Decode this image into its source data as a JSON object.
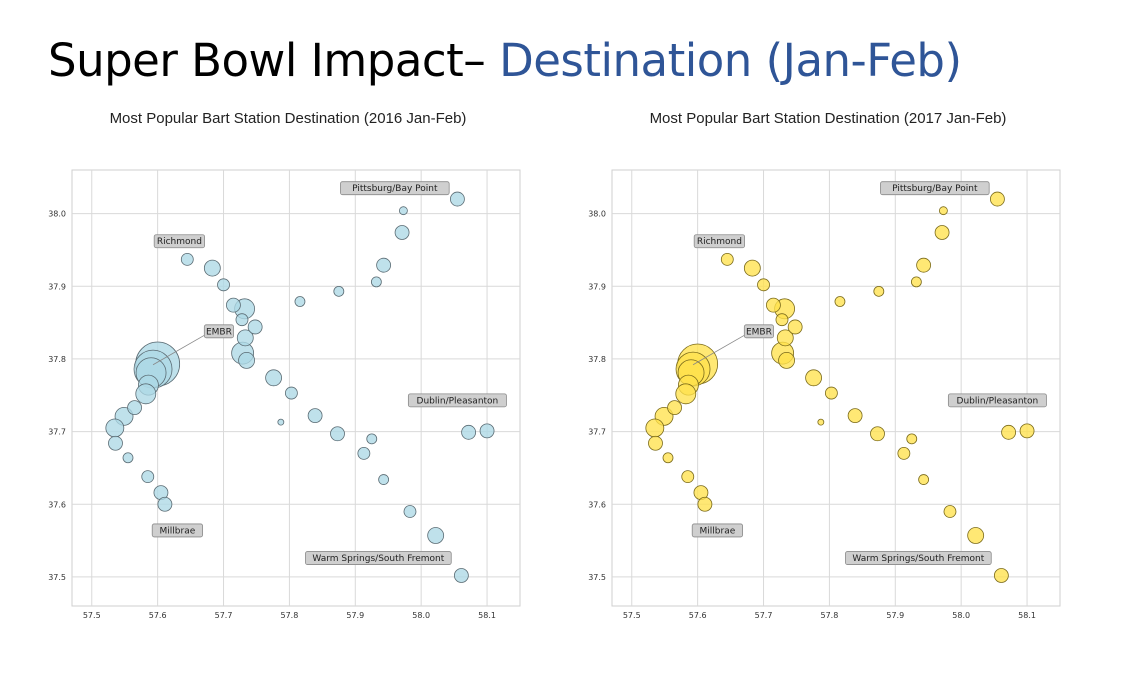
{
  "slide": {
    "title_main": "Super Bowl Impact– ",
    "title_accent": "Destination (Jan-Feb)",
    "accent_color": "#2f5597"
  },
  "chart_data": [
    {
      "type": "scatter",
      "title": "Most Popular Bart Station Destination (2016 Jan-Feb)",
      "xlabel": "",
      "ylabel": "",
      "xlim": [
        57.47,
        58.15
      ],
      "ylim": [
        37.46,
        38.06
      ],
      "xticks": [
        57.5,
        57.6,
        57.7,
        57.8,
        57.9,
        58.0,
        58.1
      ],
      "yticks": [
        37.5,
        37.6,
        37.7,
        37.8,
        37.9,
        38.0
      ],
      "grid": true,
      "marker_color": "#add8e6",
      "marker_edge": "#5a6b73",
      "points": [
        {
          "x": 58.055,
          "y": 38.02,
          "s": 7
        },
        {
          "x": 57.973,
          "y": 38.004,
          "s": 4
        },
        {
          "x": 57.971,
          "y": 37.974,
          "s": 7
        },
        {
          "x": 57.943,
          "y": 37.929,
          "s": 7
        },
        {
          "x": 57.932,
          "y": 37.906,
          "s": 5
        },
        {
          "x": 57.875,
          "y": 37.893,
          "s": 5
        },
        {
          "x": 57.816,
          "y": 37.879,
          "s": 5
        },
        {
          "x": 57.645,
          "y": 37.937,
          "s": 6
        },
        {
          "x": 57.683,
          "y": 37.925,
          "s": 8
        },
        {
          "x": 57.7,
          "y": 37.902,
          "s": 6
        },
        {
          "x": 57.715,
          "y": 37.874,
          "s": 7
        },
        {
          "x": 57.732,
          "y": 37.869,
          "s": 10
        },
        {
          "x": 57.728,
          "y": 37.854,
          "s": 6
        },
        {
          "x": 57.748,
          "y": 37.844,
          "s": 7
        },
        {
          "x": 57.733,
          "y": 37.829,
          "s": 8
        },
        {
          "x": 57.729,
          "y": 37.808,
          "s": 11
        },
        {
          "x": 57.735,
          "y": 37.798,
          "s": 8
        },
        {
          "x": 57.6,
          "y": 37.793,
          "s": 22
        },
        {
          "x": 57.593,
          "y": 37.786,
          "s": 19
        },
        {
          "x": 57.59,
          "y": 37.781,
          "s": 15
        },
        {
          "x": 57.586,
          "y": 37.764,
          "s": 10
        },
        {
          "x": 57.582,
          "y": 37.752,
          "s": 10
        },
        {
          "x": 57.776,
          "y": 37.774,
          "s": 8
        },
        {
          "x": 57.803,
          "y": 37.753,
          "s": 6
        },
        {
          "x": 57.565,
          "y": 37.733,
          "s": 7
        },
        {
          "x": 57.549,
          "y": 37.721,
          "s": 9
        },
        {
          "x": 57.535,
          "y": 37.705,
          "s": 9
        },
        {
          "x": 57.536,
          "y": 37.684,
          "s": 7
        },
        {
          "x": 57.555,
          "y": 37.664,
          "s": 5
        },
        {
          "x": 57.839,
          "y": 37.722,
          "s": 7
        },
        {
          "x": 57.787,
          "y": 37.713,
          "s": 3
        },
        {
          "x": 57.873,
          "y": 37.697,
          "s": 7
        },
        {
          "x": 57.925,
          "y": 37.69,
          "s": 5
        },
        {
          "x": 57.913,
          "y": 37.67,
          "s": 6
        },
        {
          "x": 57.943,
          "y": 37.634,
          "s": 5
        },
        {
          "x": 57.585,
          "y": 37.638,
          "s": 6
        },
        {
          "x": 57.605,
          "y": 37.616,
          "s": 7
        },
        {
          "x": 57.611,
          "y": 37.6,
          "s": 7
        },
        {
          "x": 57.983,
          "y": 37.59,
          "s": 6
        },
        {
          "x": 58.022,
          "y": 37.557,
          "s": 8
        },
        {
          "x": 58.061,
          "y": 37.502,
          "s": 7
        },
        {
          "x": 58.072,
          "y": 37.699,
          "s": 7
        },
        {
          "x": 58.1,
          "y": 37.701,
          "s": 7
        }
      ],
      "annotations": [
        {
          "label": "Pittsburg/Bay Point",
          "x": 57.96,
          "y": 38.035
        },
        {
          "label": "Richmond",
          "x": 57.633,
          "y": 37.962
        },
        {
          "label": "EMBR",
          "x": 57.693,
          "y": 37.838,
          "arrow_to": {
            "x": 57.593,
            "y": 37.792
          }
        },
        {
          "label": "Dublin/Pleasanton",
          "x": 58.055,
          "y": 37.743
        },
        {
          "label": "Millbrae",
          "x": 57.63,
          "y": 37.564
        },
        {
          "label": "Warm Springs/South Fremont",
          "x": 57.935,
          "y": 37.526
        }
      ]
    },
    {
      "type": "scatter",
      "title": "Most Popular Bart Station Destination (2017 Jan-Feb)",
      "xlabel": "",
      "ylabel": "",
      "xlim": [
        57.47,
        58.15
      ],
      "ylim": [
        37.46,
        38.06
      ],
      "xticks": [
        57.5,
        57.6,
        57.7,
        57.8,
        57.9,
        58.0,
        58.1
      ],
      "yticks": [
        37.5,
        37.6,
        37.7,
        37.8,
        37.9,
        38.0
      ],
      "grid": true,
      "marker_color": "#ffe24d",
      "marker_edge": "#7a6a1a",
      "points": [
        {
          "x": 58.055,
          "y": 38.02,
          "s": 7
        },
        {
          "x": 57.973,
          "y": 38.004,
          "s": 4
        },
        {
          "x": 57.971,
          "y": 37.974,
          "s": 7
        },
        {
          "x": 57.943,
          "y": 37.929,
          "s": 7
        },
        {
          "x": 57.932,
          "y": 37.906,
          "s": 5
        },
        {
          "x": 57.875,
          "y": 37.893,
          "s": 5
        },
        {
          "x": 57.816,
          "y": 37.879,
          "s": 5
        },
        {
          "x": 57.645,
          "y": 37.937,
          "s": 6
        },
        {
          "x": 57.683,
          "y": 37.925,
          "s": 8
        },
        {
          "x": 57.7,
          "y": 37.902,
          "s": 6
        },
        {
          "x": 57.715,
          "y": 37.874,
          "s": 7
        },
        {
          "x": 57.732,
          "y": 37.869,
          "s": 10
        },
        {
          "x": 57.728,
          "y": 37.854,
          "s": 6
        },
        {
          "x": 57.748,
          "y": 37.844,
          "s": 7
        },
        {
          "x": 57.733,
          "y": 37.829,
          "s": 8
        },
        {
          "x": 57.729,
          "y": 37.808,
          "s": 11
        },
        {
          "x": 57.735,
          "y": 37.798,
          "s": 8
        },
        {
          "x": 57.6,
          "y": 37.793,
          "s": 20
        },
        {
          "x": 57.593,
          "y": 37.786,
          "s": 17
        },
        {
          "x": 57.59,
          "y": 37.781,
          "s": 13
        },
        {
          "x": 57.586,
          "y": 37.764,
          "s": 10
        },
        {
          "x": 57.582,
          "y": 37.752,
          "s": 10
        },
        {
          "x": 57.776,
          "y": 37.774,
          "s": 8
        },
        {
          "x": 57.803,
          "y": 37.753,
          "s": 6
        },
        {
          "x": 57.565,
          "y": 37.733,
          "s": 7
        },
        {
          "x": 57.549,
          "y": 37.721,
          "s": 9
        },
        {
          "x": 57.535,
          "y": 37.705,
          "s": 9
        },
        {
          "x": 57.536,
          "y": 37.684,
          "s": 7
        },
        {
          "x": 57.555,
          "y": 37.664,
          "s": 5
        },
        {
          "x": 57.839,
          "y": 37.722,
          "s": 7
        },
        {
          "x": 57.787,
          "y": 37.713,
          "s": 3
        },
        {
          "x": 57.873,
          "y": 37.697,
          "s": 7
        },
        {
          "x": 57.925,
          "y": 37.69,
          "s": 5
        },
        {
          "x": 57.913,
          "y": 37.67,
          "s": 6
        },
        {
          "x": 57.943,
          "y": 37.634,
          "s": 5
        },
        {
          "x": 57.585,
          "y": 37.638,
          "s": 6
        },
        {
          "x": 57.605,
          "y": 37.616,
          "s": 7
        },
        {
          "x": 57.611,
          "y": 37.6,
          "s": 7
        },
        {
          "x": 57.983,
          "y": 37.59,
          "s": 6
        },
        {
          "x": 58.022,
          "y": 37.557,
          "s": 8
        },
        {
          "x": 58.061,
          "y": 37.502,
          "s": 7
        },
        {
          "x": 58.072,
          "y": 37.699,
          "s": 7
        },
        {
          "x": 58.1,
          "y": 37.701,
          "s": 7
        }
      ],
      "annotations": [
        {
          "label": "Pittsburg/Bay Point",
          "x": 57.96,
          "y": 38.035
        },
        {
          "label": "Richmond",
          "x": 57.633,
          "y": 37.962
        },
        {
          "label": "EMBR",
          "x": 57.693,
          "y": 37.838,
          "arrow_to": {
            "x": 57.593,
            "y": 37.792
          }
        },
        {
          "label": "Dublin/Pleasanton",
          "x": 58.055,
          "y": 37.743
        },
        {
          "label": "Millbrae",
          "x": 57.63,
          "y": 37.564
        },
        {
          "label": "Warm Springs/South Fremont",
          "x": 57.935,
          "y": 37.526
        }
      ]
    }
  ]
}
